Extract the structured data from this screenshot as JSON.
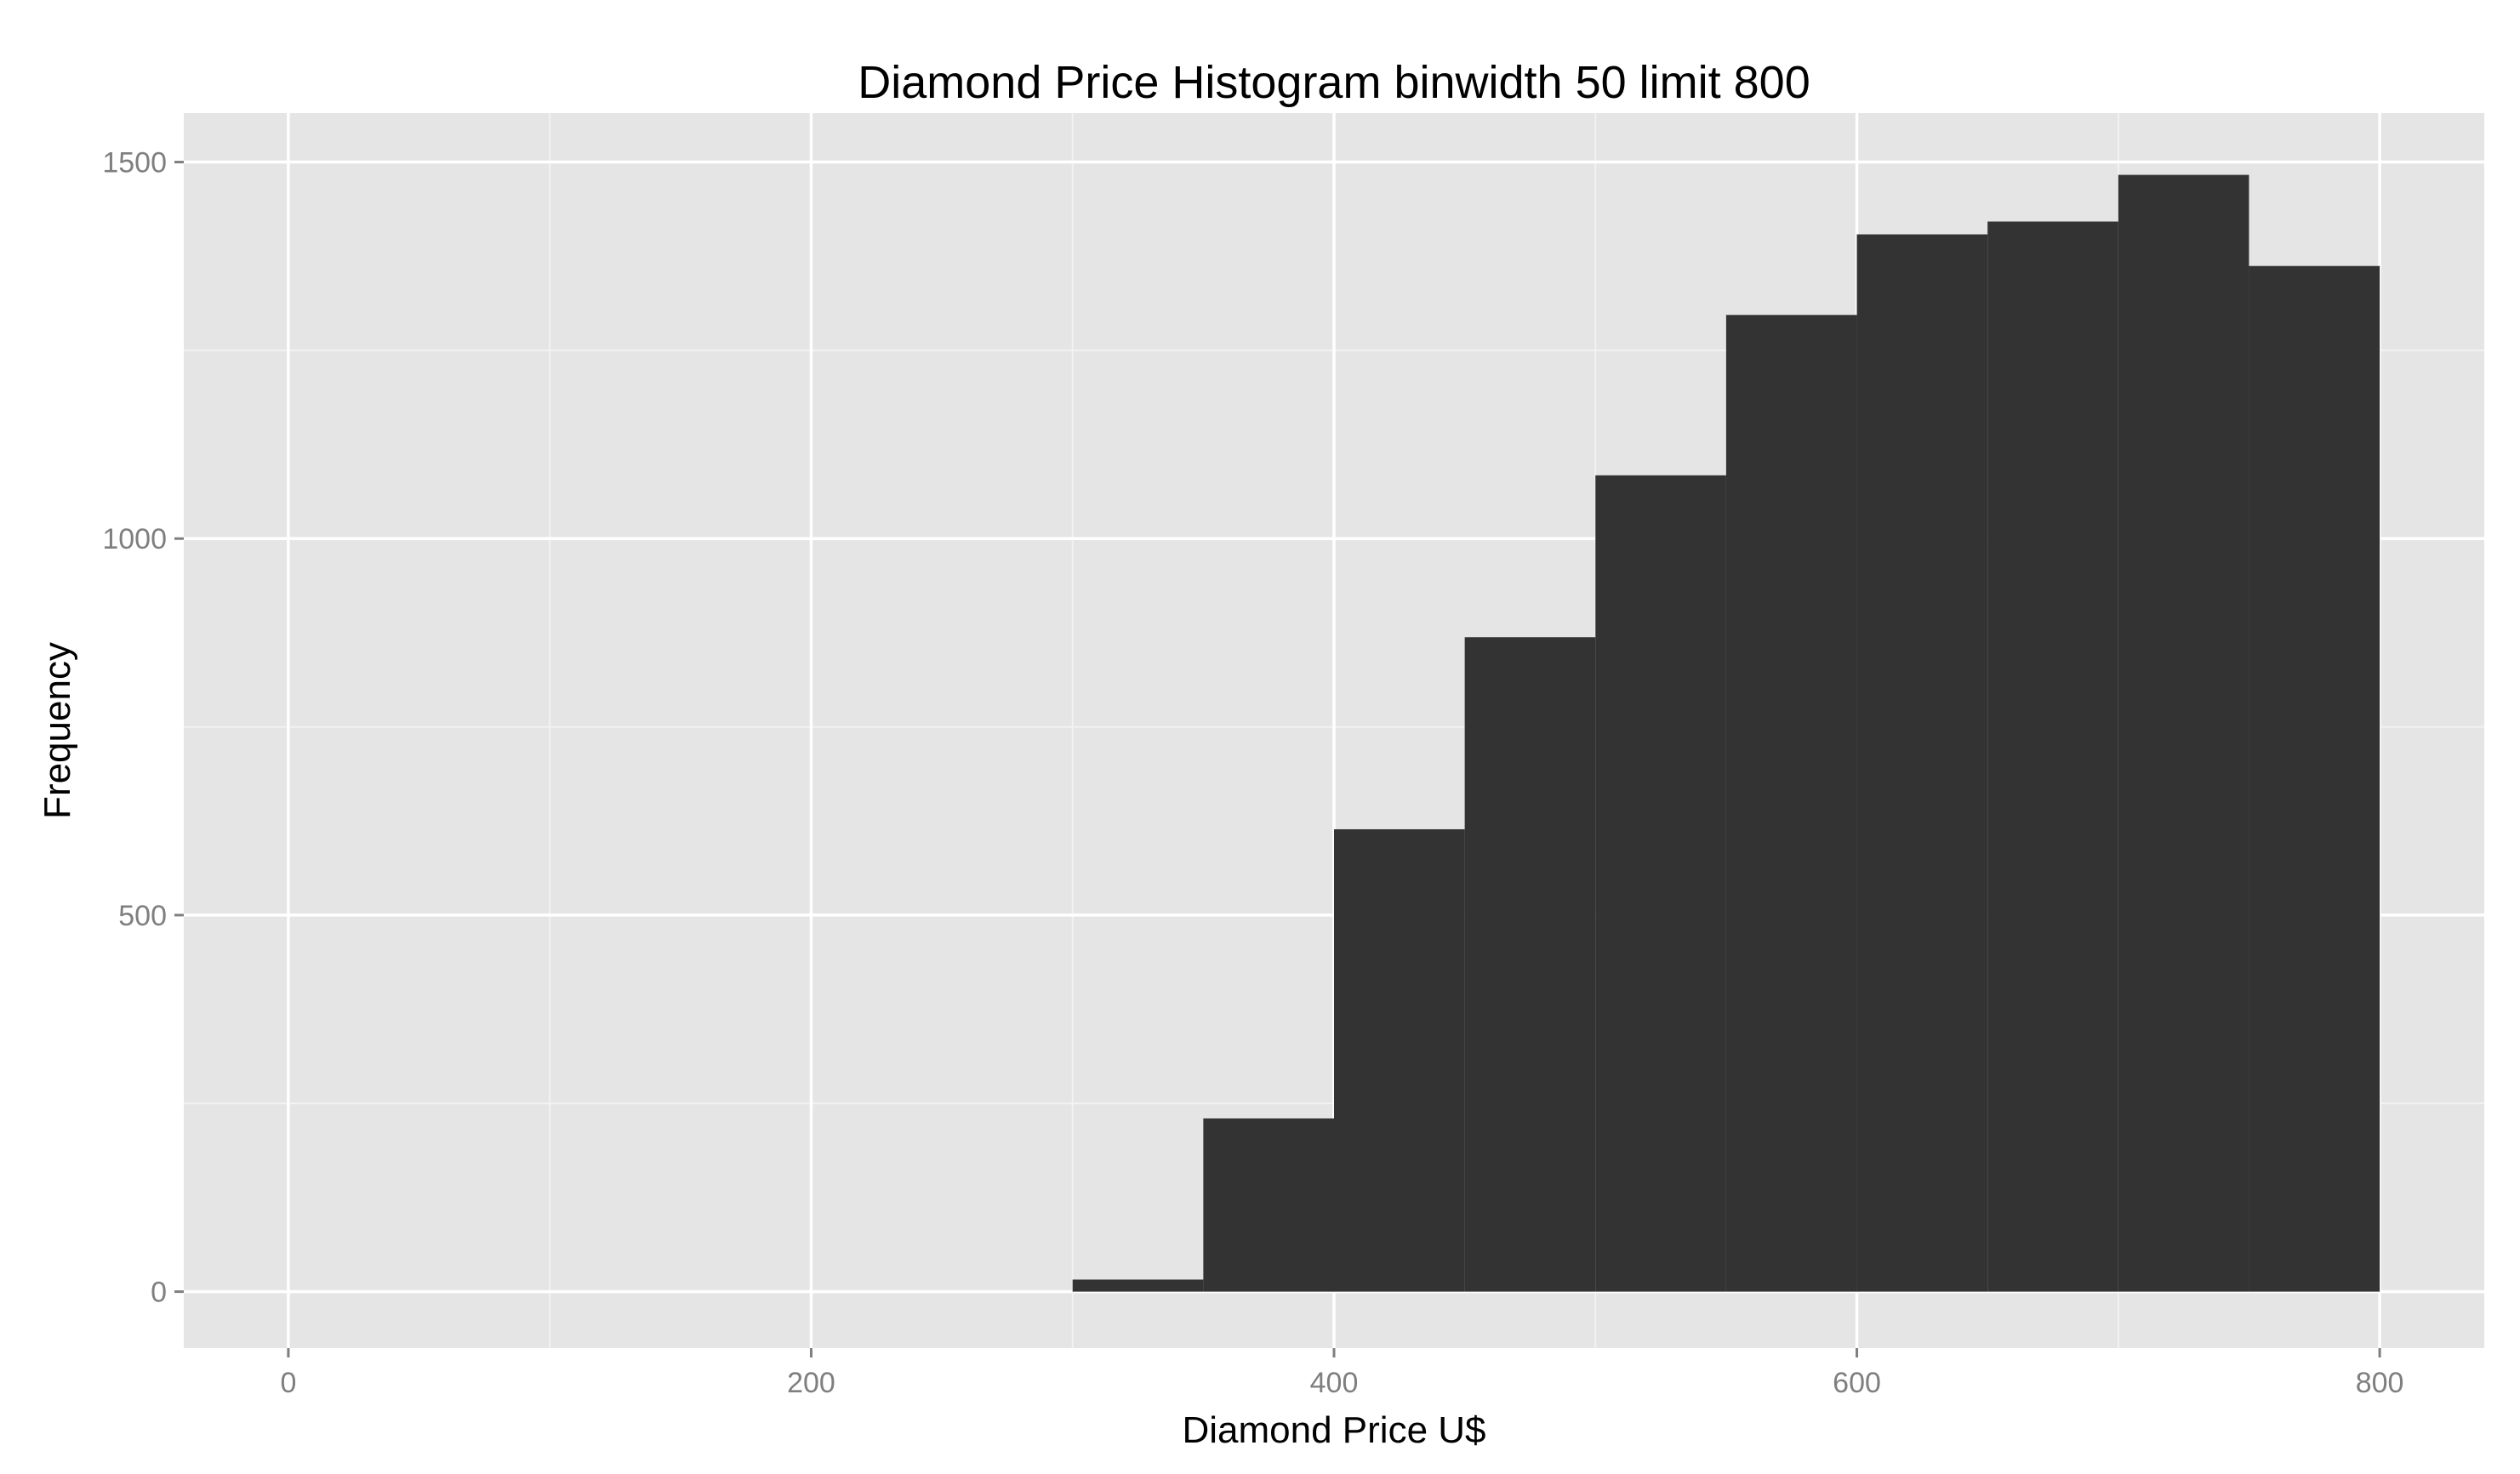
{
  "chart_data": {
    "type": "bar",
    "title": "Diamond Price Histogram binwidth 50 limit 800",
    "xlabel": "Diamond Price U$",
    "ylabel": "Frequency",
    "binwidth": 50,
    "xlim": [
      -40,
      840
    ],
    "ylim": [
      -75,
      1565
    ],
    "x_ticks": [
      0,
      200,
      400,
      600,
      800
    ],
    "y_ticks": [
      0,
      500,
      1000,
      1500
    ],
    "x_tick_labels": [
      "0",
      "200",
      "400",
      "600",
      "800"
    ],
    "y_tick_labels": [
      "0",
      "500",
      "1000",
      "1500"
    ],
    "grid": true,
    "bins": [
      {
        "start": 300,
        "end": 350,
        "count": 16
      },
      {
        "start": 350,
        "end": 400,
        "count": 230
      },
      {
        "start": 400,
        "end": 450,
        "count": 614
      },
      {
        "start": 450,
        "end": 500,
        "count": 869
      },
      {
        "start": 500,
        "end": 550,
        "count": 1084
      },
      {
        "start": 550,
        "end": 600,
        "count": 1297
      },
      {
        "start": 600,
        "end": 650,
        "count": 1404
      },
      {
        "start": 650,
        "end": 700,
        "count": 1421
      },
      {
        "start": 700,
        "end": 750,
        "count": 1483
      },
      {
        "start": 750,
        "end": 800,
        "count": 1362
      }
    ],
    "colors": {
      "panel": "#e5e5e5",
      "grid_major": "#ffffff",
      "grid_minor": "#f2f2f2",
      "bar": "#333333",
      "tick_label": "#7f7f7f"
    }
  }
}
